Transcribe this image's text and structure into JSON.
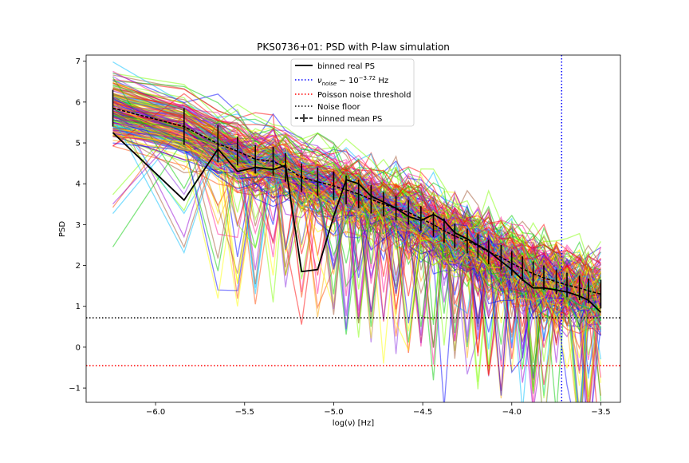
{
  "chart_data": {
    "type": "line",
    "title": "PKS0736+01: PSD with P-law simulation",
    "xlabel": "log(ν) [Hz]",
    "ylabel": "PSD",
    "xlim": [
      -6.39,
      -3.39
    ],
    "ylim": [
      -1.35,
      7.15
    ],
    "x_ticks": [
      -6.0,
      -5.5,
      -5.0,
      -4.5,
      -4.0,
      -3.5
    ],
    "x_tick_labels": [
      "−6.0",
      "−5.5",
      "−5.0",
      "−4.5",
      "−4.0",
      "−3.5"
    ],
    "y_ticks": [
      -1,
      0,
      1,
      2,
      3,
      4,
      5,
      6,
      7
    ],
    "y_tick_labels": [
      "−1",
      "0",
      "1",
      "2",
      "3",
      "4",
      "5",
      "6",
      "7"
    ],
    "grid": false,
    "legend_position": "top-center",
    "bin_x": [
      -6.24,
      -5.84,
      -5.65,
      -5.54,
      -5.44,
      -5.34,
      -5.27,
      -5.18,
      -5.09,
      -5.0,
      -4.93,
      -4.86,
      -4.79,
      -4.72,
      -4.65,
      -4.58,
      -4.51,
      -4.44,
      -4.38,
      -4.32,
      -4.25,
      -4.19,
      -4.13,
      -4.06,
      -4.0,
      -3.94,
      -3.88,
      -3.82,
      -3.75,
      -3.69,
      -3.62,
      -3.57,
      -3.5
    ],
    "series": [
      {
        "name": "binned real PS",
        "style": "solid",
        "color": "#000000",
        "values": [
          5.25,
          3.6,
          4.85,
          4.3,
          4.4,
          4.35,
          4.45,
          1.85,
          1.9,
          3.2,
          4.1,
          4.0,
          3.7,
          3.55,
          3.4,
          3.2,
          3.1,
          3.25,
          3.1,
          2.8,
          2.65,
          2.5,
          2.35,
          2.1,
          1.9,
          1.65,
          1.45,
          1.45,
          1.4,
          1.35,
          1.25,
          1.15,
          0.85
        ]
      },
      {
        "name": "binned mean PS",
        "style": "dashed",
        "color": "#000000",
        "values": [
          5.85,
          5.4,
          4.98,
          4.8,
          4.6,
          4.55,
          4.4,
          4.15,
          4.05,
          3.95,
          3.85,
          3.75,
          3.62,
          3.5,
          3.4,
          3.3,
          3.15,
          3.0,
          2.85,
          2.72,
          2.6,
          2.48,
          2.33,
          2.2,
          2.05,
          1.92,
          1.8,
          1.7,
          1.6,
          1.52,
          1.45,
          1.38,
          1.3
        ],
        "errors": [
          0.45,
          0.45,
          0.45,
          0.35,
          0.35,
          0.35,
          0.35,
          0.35,
          0.35,
          0.35,
          0.35,
          0.35,
          0.35,
          0.3,
          0.3,
          0.3,
          0.3,
          0.3,
          0.3,
          0.3,
          0.3,
          0.3,
          0.3,
          0.3,
          0.3,
          0.3,
          0.3,
          0.3,
          0.3,
          0.3,
          0.3,
          0.3,
          0.35
        ]
      }
    ],
    "simulations": {
      "count": 220,
      "colors": [
        "#ff0000",
        "#ffa500",
        "#ffff00",
        "#00cc00",
        "#0000ff",
        "#9400d3",
        "#ff1493",
        "#7fff00",
        "#a0522d",
        "#00bfff",
        "#ff4500",
        "#8a2be2"
      ],
      "alpha": 0.5
    },
    "reference_lines": [
      {
        "name": "ν_noise ~ 10^−3.72 Hz",
        "orientation": "vertical",
        "value": -3.72,
        "style": "dotted",
        "color": "#0000ff"
      },
      {
        "name": "Poisson noise threshold",
        "orientation": "horizontal",
        "value": -0.45,
        "style": "dotted",
        "color": "#ff0000"
      },
      {
        "name": "Noise floor",
        "orientation": "horizontal",
        "value": 0.72,
        "style": "dotted",
        "color": "#000000"
      }
    ],
    "legend": [
      {
        "label": "binned real PS",
        "style": "solid",
        "color": "#000000"
      },
      {
        "label_main": "ν",
        "label_sub": "noise",
        "label_mid": " ~ 10",
        "label_sup": "−3.72",
        "label_end": " Hz",
        "style": "dotted",
        "color": "#0000ff"
      },
      {
        "label": "Poisson noise threshold",
        "style": "dotted",
        "color": "#ff0000"
      },
      {
        "label": "Noise floor",
        "style": "dotted",
        "color": "#000000"
      },
      {
        "label": "binned mean PS",
        "style": "dashed-errorbar",
        "color": "#000000"
      }
    ]
  }
}
